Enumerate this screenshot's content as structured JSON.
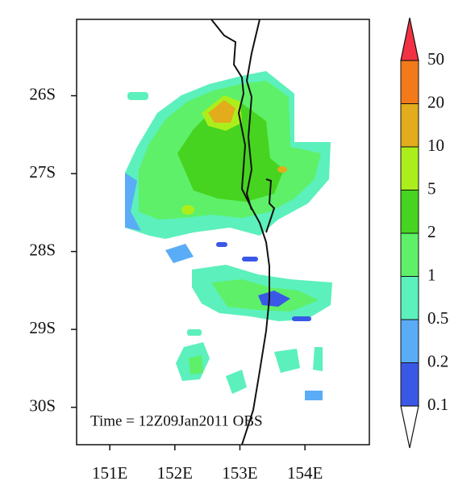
{
  "map": {
    "annotation": "Time = 12Z09Jan2011 OBS",
    "xlim": [
      150.49,
      154.99
    ],
    "ylim": [
      -30.48,
      -25.02
    ],
    "xticks": [
      {
        "value": 151,
        "label": "151E"
      },
      {
        "value": 152,
        "label": "152E"
      },
      {
        "value": 153,
        "label": "153E"
      },
      {
        "value": 154,
        "label": "154E"
      }
    ],
    "yticks": [
      {
        "value": -26,
        "label": "26S"
      },
      {
        "value": -27,
        "label": "27S"
      },
      {
        "value": -28,
        "label": "28S"
      },
      {
        "value": -29,
        "label": "29S"
      },
      {
        "value": -30,
        "label": "30S"
      }
    ],
    "colorbar": {
      "levels": [
        0.1,
        0.2,
        0.5,
        1,
        2,
        5,
        10,
        20,
        50
      ],
      "colors": [
        "#ffffff",
        "#3a58e6",
        "#5aacf6",
        "#5cf0bc",
        "#5ef068",
        "#46d420",
        "#acee1c",
        "#e2ac1c",
        "#f27a1a",
        "#f23244"
      ]
    }
  }
}
